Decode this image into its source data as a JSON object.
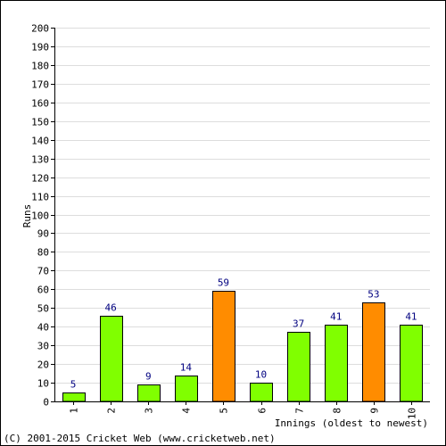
{
  "chart_data": {
    "type": "bar",
    "categories": [
      "1",
      "2",
      "3",
      "4",
      "5",
      "6",
      "7",
      "8",
      "9",
      "10"
    ],
    "values": [
      5,
      46,
      9,
      14,
      59,
      10,
      37,
      41,
      53,
      41
    ],
    "value_labels": [
      "5",
      "46",
      "9",
      "14",
      "59",
      "10",
      "37",
      "41",
      "53",
      "41"
    ],
    "bar_colors": [
      "#80ff00",
      "#80ff00",
      "#80ff00",
      "#80ff00",
      "#ff8c00",
      "#80ff00",
      "#80ff00",
      "#80ff00",
      "#ff8c00",
      "#80ff00"
    ],
    "ylabel": "Runs",
    "xlabel": "Innings (oldest to newest)",
    "ylim": [
      0,
      200
    ],
    "yticks": [
      "0",
      "10",
      "20",
      "30",
      "40",
      "50",
      "60",
      "70",
      "80",
      "90",
      "100",
      "110",
      "120",
      "130",
      "140",
      "150",
      "160",
      "170",
      "180",
      "190",
      "200"
    ],
    "grid": true,
    "colors": {
      "bar_default": "#80ff00",
      "bar_highlight": "#ff8c00",
      "value_label": "#000080",
      "grid": "#dddddd",
      "axis": "#000000",
      "frame": "#000000"
    }
  },
  "footer": {
    "copyright": "(C) 2001-2015 Cricket Web (www.cricketweb.net)"
  }
}
